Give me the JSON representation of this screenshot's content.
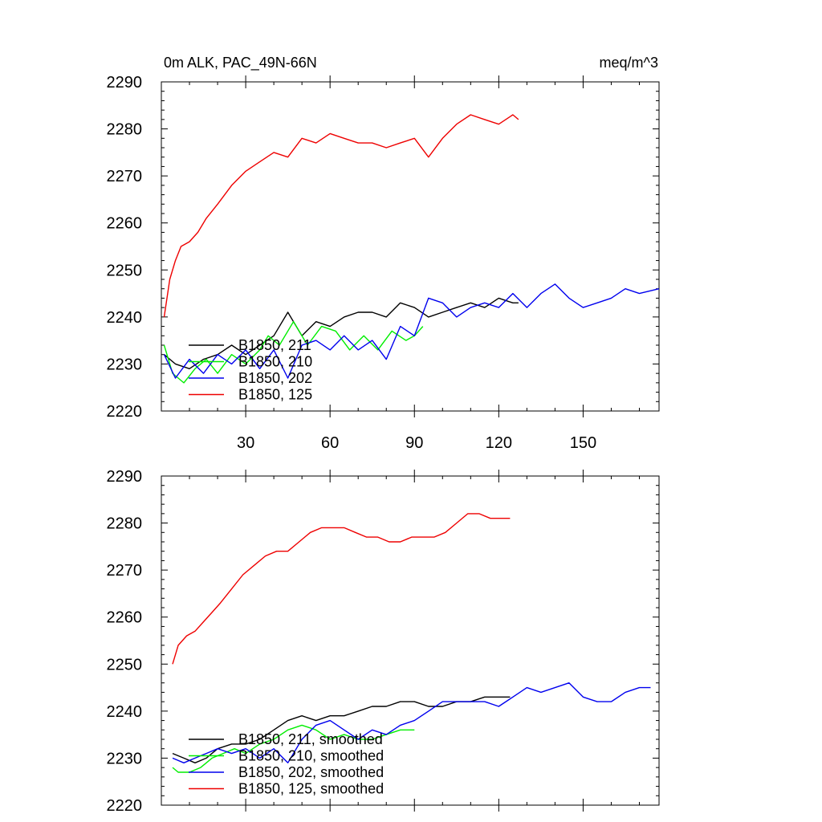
{
  "chart_data": [
    {
      "type": "line",
      "title_left": "0m ALK, PAC_49N-66N",
      "title_right": "meq/m^3",
      "xlabel": "",
      "ylabel": "",
      "xlim": [
        0,
        177
      ],
      "ylim": [
        2220,
        2290
      ],
      "xticks": [
        30,
        60,
        90,
        120,
        150
      ],
      "xtick_labels": [
        "30",
        "60",
        "90",
        "120",
        "150"
      ],
      "yticks": [
        2220,
        2230,
        2240,
        2250,
        2260,
        2270,
        2280,
        2290
      ],
      "ytick_labels": [
        "2220",
        "2230",
        "2240",
        "2250",
        "2260",
        "2270",
        "2280",
        "2290"
      ],
      "legend_position": "bottom-left",
      "series": [
        {
          "name": "B1850, 211",
          "color": "#000000",
          "x": [
            1,
            5,
            10,
            15,
            20,
            25,
            30,
            35,
            40,
            45,
            50,
            55,
            60,
            65,
            70,
            75,
            80,
            85,
            90,
            95,
            100,
            105,
            110,
            115,
            120,
            125,
            127
          ],
          "values": [
            2232,
            2230,
            2229,
            2231,
            2232,
            2234,
            2232,
            2234,
            2236,
            2241,
            2236,
            2239,
            2238,
            2240,
            2241,
            2241,
            2240,
            2243,
            2242,
            2240,
            2241,
            2242,
            2243,
            2242,
            2244,
            2243,
            2243
          ]
        },
        {
          "name": "B1850, 210",
          "color": "#00ee00",
          "x": [
            1,
            4,
            8,
            12,
            16,
            20,
            25,
            30,
            35,
            38,
            42,
            47,
            52,
            57,
            62,
            67,
            72,
            77,
            82,
            87,
            90,
            93
          ],
          "values": [
            2234,
            2228,
            2226,
            2229,
            2231,
            2228,
            2232,
            2230,
            2233,
            2236,
            2234,
            2239,
            2234,
            2238,
            2237,
            2233,
            2236,
            2233,
            2237,
            2235,
            2236,
            2238
          ]
        },
        {
          "name": "B1850, 202",
          "color": "#0000ee",
          "x": [
            1,
            5,
            10,
            15,
            20,
            25,
            30,
            35,
            40,
            45,
            50,
            55,
            60,
            65,
            70,
            75,
            80,
            85,
            90,
            95,
            100,
            105,
            110,
            115,
            120,
            125,
            130,
            135,
            140,
            145,
            150,
            155,
            160,
            165,
            170,
            177
          ],
          "values": [
            2232,
            2227,
            2231,
            2228,
            2232,
            2230,
            2233,
            2229,
            2233,
            2227,
            2234,
            2235,
            2233,
            2236,
            2233,
            2235,
            2231,
            2238,
            2236,
            2244,
            2243,
            2240,
            2242,
            2243,
            2242,
            2245,
            2242,
            2245,
            2247,
            2244,
            2242,
            2243,
            2244,
            2246,
            2245,
            2246
          ]
        },
        {
          "name": "B1850, 125",
          "color": "#ee0000",
          "x": [
            1,
            3,
            5,
            7,
            10,
            13,
            16,
            20,
            25,
            30,
            35,
            40,
            45,
            50,
            55,
            60,
            65,
            70,
            75,
            80,
            85,
            90,
            95,
            100,
            105,
            110,
            115,
            120,
            125,
            127
          ],
          "values": [
            2240,
            2248,
            2252,
            2255,
            2256,
            2258,
            2261,
            2264,
            2268,
            2271,
            2273,
            2275,
            2274,
            2278,
            2277,
            2279,
            2278,
            2277,
            2277,
            2276,
            2277,
            2278,
            2274,
            2278,
            2281,
            2283,
            2282,
            2281,
            2283,
            2282
          ]
        }
      ]
    },
    {
      "type": "line",
      "xlim": [
        0,
        177
      ],
      "ylim": [
        2220,
        2290
      ],
      "yticks": [
        2220,
        2230,
        2240,
        2250,
        2260,
        2270,
        2280,
        2290
      ],
      "ytick_labels": [
        "2220",
        "2230",
        "2240",
        "2250",
        "2260",
        "2270",
        "2280",
        "2290"
      ],
      "xticks": [
        30,
        60,
        90,
        120,
        150
      ],
      "legend_position": "bottom-left",
      "series": [
        {
          "name": "B1850, 211, smoothed",
          "color": "#000000",
          "x": [
            4,
            8,
            12,
            16,
            20,
            25,
            30,
            35,
            40,
            45,
            50,
            55,
            60,
            65,
            70,
            75,
            80,
            85,
            90,
            95,
            100,
            105,
            110,
            115,
            120,
            124
          ],
          "values": [
            2231,
            2230,
            2229,
            2230,
            2232,
            2233,
            2233,
            2234,
            2236,
            2238,
            2239,
            2238,
            2239,
            2239,
            2240,
            2241,
            2241,
            2242,
            2242,
            2241,
            2241,
            2242,
            2242,
            2243,
            2243,
            2243
          ]
        },
        {
          "name": "B1850, 210, smoothed",
          "color": "#00ee00",
          "x": [
            4,
            6,
            10,
            14,
            18,
            22,
            26,
            30,
            35,
            40,
            45,
            50,
            55,
            60,
            65,
            70,
            75,
            80,
            85,
            90
          ],
          "values": [
            2228,
            2227,
            2227,
            2228,
            2230,
            2231,
            2232,
            2231,
            2233,
            2234,
            2236,
            2237,
            2236,
            2234,
            2235,
            2234,
            2234,
            2235,
            2236,
            2236
          ]
        },
        {
          "name": "B1850, 202, smoothed",
          "color": "#0000ee",
          "x": [
            4,
            8,
            12,
            16,
            20,
            25,
            30,
            35,
            40,
            45,
            50,
            55,
            60,
            65,
            70,
            75,
            80,
            85,
            90,
            95,
            100,
            105,
            110,
            115,
            120,
            125,
            130,
            135,
            140,
            145,
            150,
            155,
            160,
            165,
            170,
            174
          ],
          "values": [
            2230,
            2229,
            2230,
            2231,
            2232,
            2231,
            2232,
            2230,
            2232,
            2229,
            2234,
            2237,
            2238,
            2236,
            2234,
            2236,
            2235,
            2237,
            2238,
            2240,
            2242,
            2242,
            2242,
            2242,
            2241,
            2243,
            2245,
            2244,
            2245,
            2246,
            2243,
            2242,
            2242,
            2244,
            2245,
            2245
          ]
        },
        {
          "name": "B1850, 125, smoothed",
          "color": "#ee0000",
          "x": [
            4,
            6,
            9,
            12,
            15,
            18,
            21,
            25,
            29,
            33,
            37,
            41,
            45,
            49,
            53,
            57,
            61,
            65,
            69,
            73,
            77,
            81,
            85,
            89,
            93,
            97,
            101,
            105,
            109,
            113,
            117,
            121,
            124
          ],
          "values": [
            2250,
            2254,
            2256,
            2257,
            2259,
            2261,
            2263,
            2266,
            2269,
            2271,
            2273,
            2274,
            2274,
            2276,
            2278,
            2279,
            2279,
            2279,
            2278,
            2277,
            2277,
            2276,
            2276,
            2277,
            2277,
            2277,
            2278,
            2280,
            2282,
            2282,
            2281,
            2281,
            2281
          ]
        }
      ]
    }
  ]
}
